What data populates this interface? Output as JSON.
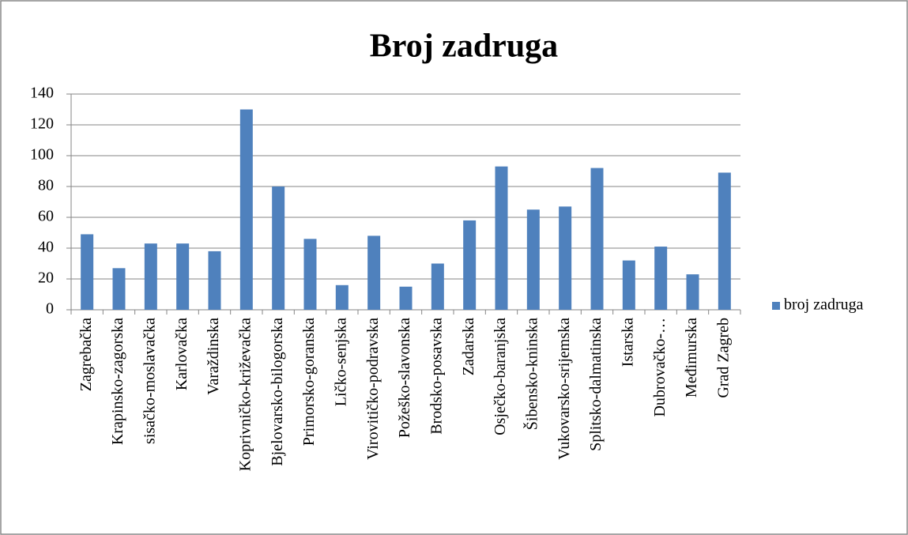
{
  "chart_data": {
    "type": "bar",
    "title": "Broj zadruga",
    "categories": [
      "Zagrebačka",
      "Krapinsko-zagorska",
      "sisačko-moslavačka",
      "Karlovačka",
      "Varaždinska",
      "Koprivničko-križevačka",
      "Bjelovarsko-bilogorska",
      "Primorsko-goranska",
      "Ličko-senjska",
      "Virovitičko-podravska",
      "Požeško-slavonska",
      "Brodsko-posavska",
      "Zadarska",
      "Osječko-baranjska",
      "Šibensko-kninska",
      "Vukovarsko-srijemska",
      "Splitsko-dalmatinska",
      "Istarska",
      "Dubrovačko-…",
      "Međimurska",
      "Grad Zagreb"
    ],
    "series": [
      {
        "name": "broj zadruga",
        "color": "#4f81bd",
        "values": [
          49,
          27,
          43,
          43,
          38,
          130,
          80,
          46,
          16,
          48,
          15,
          30,
          58,
          93,
          65,
          67,
          92,
          32,
          41,
          23,
          89
        ]
      }
    ],
    "ylim": [
      0,
      140
    ],
    "yticks": [
      0,
      20,
      40,
      60,
      80,
      100,
      120,
      140
    ],
    "grid": true,
    "legend": "right"
  }
}
